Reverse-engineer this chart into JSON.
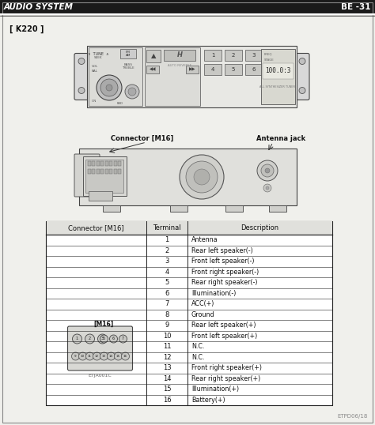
{
  "title_left": "AUDIO SYSTEM",
  "title_right": "BE -31",
  "section_label": "[ K220 ]",
  "connector_label": "Connector [M16]",
  "antenna_label": "Antenna jack",
  "connector_diagram_label": "[M16]",
  "connector_code": "ETJA001C",
  "footer": "ETPD06/18",
  "table_headers": [
    "Connector [M16]",
    "Terminal",
    "Description"
  ],
  "terminals": [
    1,
    2,
    3,
    4,
    5,
    6,
    7,
    8,
    9,
    10,
    11,
    12,
    13,
    14,
    15,
    16
  ],
  "descriptions": [
    "Antenna",
    "Rear left speaker(-)",
    "Front left speaker(-)",
    "Front right speaker(-)",
    "Rear right speaker(-)",
    "Illumination(-)",
    "ACC(+)",
    "Ground",
    "Rear left speaker(+)",
    "Front left speaker(+)",
    "N.C.",
    "N.C.",
    "Front right speaker(+)",
    "Rear right speaker(+)",
    "Illumination(+)",
    "Battery(+)"
  ],
  "bg_color": "#f0f0ec",
  "table_line_color": "#222222",
  "text_color": "#111111",
  "title_bar_color": "#1a1a1a",
  "title_text_color": "#ffffff"
}
